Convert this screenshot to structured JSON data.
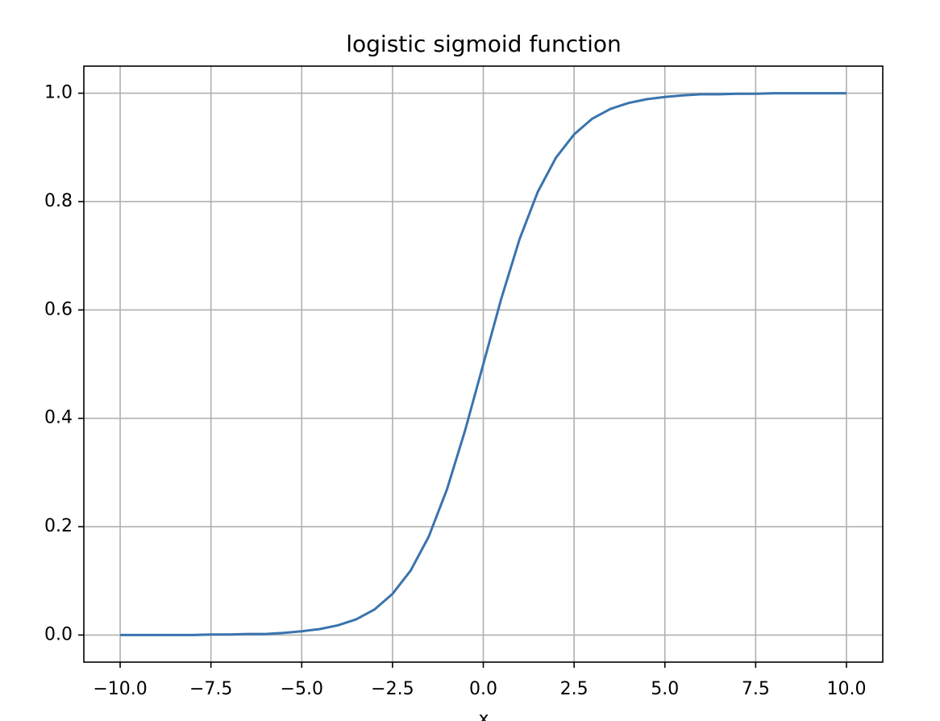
{
  "chart_data": {
    "type": "line",
    "title": "logistic sigmoid function",
    "xlabel": "x",
    "x": [
      -10,
      -9.5,
      -9,
      -8.5,
      -8,
      -7.5,
      -7,
      -6.5,
      -6,
      -5.5,
      -5,
      -4.5,
      -4,
      -3.5,
      -3,
      -2.5,
      -2,
      -1.5,
      -1,
      -0.5,
      0,
      0.5,
      1,
      1.5,
      2,
      2.5,
      3,
      3.5,
      4,
      4.5,
      5,
      5.5,
      6,
      6.5,
      7,
      7.5,
      8,
      8.5,
      9,
      9.5,
      10
    ],
    "series": [
      {
        "color": "#3a74ad",
        "values": [
          0,
          0,
          0,
          0,
          0,
          0.001,
          0.001,
          0.002,
          0.002,
          0.004,
          0.007,
          0.011,
          0.018,
          0.029,
          0.047,
          0.076,
          0.119,
          0.182,
          0.269,
          0.378,
          0.5,
          0.622,
          0.731,
          0.818,
          0.881,
          0.924,
          0.953,
          0.971,
          0.982,
          0.989,
          0.993,
          0.996,
          0.998,
          0.998,
          0.999,
          0.999,
          1,
          1,
          1,
          1,
          1
        ]
      }
    ],
    "xlim": [
      -11,
      11
    ],
    "ylim": [
      -0.05,
      1.05
    ],
    "xticks": [
      {
        "value": -10,
        "label": "−10.0"
      },
      {
        "value": -7.5,
        "label": "−7.5"
      },
      {
        "value": -5,
        "label": "−5.0"
      },
      {
        "value": -2.5,
        "label": "−2.5"
      },
      {
        "value": 0,
        "label": "0.0"
      },
      {
        "value": 2.5,
        "label": "2.5"
      },
      {
        "value": 5,
        "label": "5.0"
      },
      {
        "value": 7.5,
        "label": "7.5"
      },
      {
        "value": 10,
        "label": "10.0"
      }
    ],
    "yticks": [
      {
        "value": 0,
        "label": "0.0"
      },
      0.2,
      0.4,
      0.6,
      0.8,
      {
        "value": 1,
        "label": "1.0"
      }
    ],
    "grid": true
  }
}
